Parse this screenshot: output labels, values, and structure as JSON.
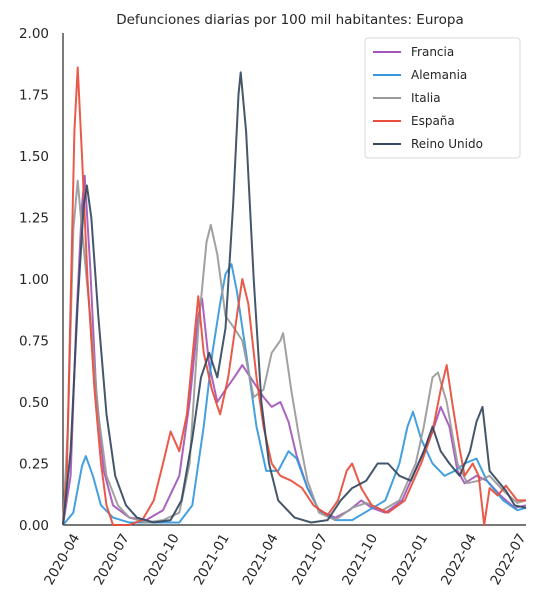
{
  "chart_data": {
    "type": "line",
    "title": "Defunciones diarias por 100 mil habitantes: Europa",
    "xlabel": "",
    "ylabel": "",
    "ylim": [
      0,
      2.0
    ],
    "xlim": [
      "2020-03-01",
      "2022-07-01"
    ],
    "yticks": [
      "0.00",
      "0.25",
      "0.50",
      "0.75",
      "1.00",
      "1.25",
      "1.50",
      "1.75",
      "2.00"
    ],
    "xticks": [
      {
        "date": "2020-04-01",
        "label": "2020-04"
      },
      {
        "date": "2020-07-01",
        "label": "2020-07"
      },
      {
        "date": "2020-10-01",
        "label": "2020-10"
      },
      {
        "date": "2021-01-01",
        "label": "2021-01"
      },
      {
        "date": "2021-04-01",
        "label": "2021-04"
      },
      {
        "date": "2021-07-01",
        "label": "2021-07"
      },
      {
        "date": "2021-10-01",
        "label": "2021-10"
      },
      {
        "date": "2022-01-01",
        "label": "2022-01"
      },
      {
        "date": "2022-04-01",
        "label": "2022-04"
      },
      {
        "date": "2022-07-01",
        "label": "2022-07"
      }
    ],
    "grid": false,
    "legend_position": "top-right",
    "series": [
      {
        "name": "Francia",
        "color": "#a356b8",
        "points": [
          [
            "2020-03-01",
            0.0
          ],
          [
            "2020-03-15",
            0.2
          ],
          [
            "2020-03-25",
            0.8
          ],
          [
            "2020-04-05",
            1.3
          ],
          [
            "2020-04-10",
            1.42
          ],
          [
            "2020-04-20",
            1.05
          ],
          [
            "2020-05-01",
            0.55
          ],
          [
            "2020-05-15",
            0.22
          ],
          [
            "2020-06-01",
            0.08
          ],
          [
            "2020-07-01",
            0.03
          ],
          [
            "2020-08-01",
            0.02
          ],
          [
            "2020-09-01",
            0.06
          ],
          [
            "2020-10-01",
            0.2
          ],
          [
            "2020-10-20",
            0.5
          ],
          [
            "2020-11-05",
            0.85
          ],
          [
            "2020-11-12",
            0.92
          ],
          [
            "2020-11-25",
            0.65
          ],
          [
            "2020-12-10",
            0.5
          ],
          [
            "2020-12-25",
            0.55
          ],
          [
            "2021-01-10",
            0.6
          ],
          [
            "2021-01-25",
            0.65
          ],
          [
            "2021-02-15",
            0.58
          ],
          [
            "2021-03-05",
            0.52
          ],
          [
            "2021-03-20",
            0.48
          ],
          [
            "2021-04-05",
            0.5
          ],
          [
            "2021-04-20",
            0.42
          ],
          [
            "2021-05-05",
            0.28
          ],
          [
            "2021-05-25",
            0.15
          ],
          [
            "2021-06-15",
            0.06
          ],
          [
            "2021-07-15",
            0.03
          ],
          [
            "2021-08-10",
            0.06
          ],
          [
            "2021-09-01",
            0.1
          ],
          [
            "2021-09-20",
            0.07
          ],
          [
            "2021-10-15",
            0.05
          ],
          [
            "2021-11-15",
            0.1
          ],
          [
            "2021-12-15",
            0.25
          ],
          [
            "2022-01-10",
            0.38
          ],
          [
            "2022-01-25",
            0.48
          ],
          [
            "2022-02-10",
            0.4
          ],
          [
            "2022-02-25",
            0.22
          ],
          [
            "2022-03-10",
            0.17
          ],
          [
            "2022-04-01",
            0.2
          ],
          [
            "2022-04-20",
            0.18
          ],
          [
            "2022-05-15",
            0.12
          ],
          [
            "2022-06-10",
            0.07
          ],
          [
            "2022-07-01",
            0.08
          ]
        ]
      },
      {
        "name": "Alemania",
        "color": "#3498db",
        "points": [
          [
            "2020-03-01",
            0.0
          ],
          [
            "2020-03-20",
            0.05
          ],
          [
            "2020-04-05",
            0.24
          ],
          [
            "2020-04-12",
            0.28
          ],
          [
            "2020-04-25",
            0.2
          ],
          [
            "2020-05-10",
            0.08
          ],
          [
            "2020-06-01",
            0.03
          ],
          [
            "2020-07-01",
            0.01
          ],
          [
            "2020-08-15",
            0.01
          ],
          [
            "2020-10-01",
            0.01
          ],
          [
            "2020-10-25",
            0.08
          ],
          [
            "2020-11-15",
            0.4
          ],
          [
            "2020-12-01",
            0.7
          ],
          [
            "2020-12-15",
            0.9
          ],
          [
            "2020-12-25",
            1.02
          ],
          [
            "2021-01-05",
            1.06
          ],
          [
            "2021-01-15",
            0.95
          ],
          [
            "2021-02-01",
            0.7
          ],
          [
            "2021-02-20",
            0.4
          ],
          [
            "2021-03-10",
            0.22
          ],
          [
            "2021-04-01",
            0.22
          ],
          [
            "2021-04-20",
            0.3
          ],
          [
            "2021-05-05",
            0.27
          ],
          [
            "2021-05-25",
            0.15
          ],
          [
            "2021-06-15",
            0.06
          ],
          [
            "2021-07-15",
            0.02
          ],
          [
            "2021-08-15",
            0.02
          ],
          [
            "2021-09-15",
            0.06
          ],
          [
            "2021-10-15",
            0.1
          ],
          [
            "2021-11-10",
            0.25
          ],
          [
            "2021-11-25",
            0.4
          ],
          [
            "2021-12-05",
            0.46
          ],
          [
            "2021-12-20",
            0.35
          ],
          [
            "2022-01-10",
            0.25
          ],
          [
            "2022-02-01",
            0.2
          ],
          [
            "2022-02-20",
            0.22
          ],
          [
            "2022-03-10",
            0.25
          ],
          [
            "2022-04-01",
            0.27
          ],
          [
            "2022-04-20",
            0.18
          ],
          [
            "2022-05-20",
            0.1
          ],
          [
            "2022-06-15",
            0.06
          ],
          [
            "2022-07-01",
            0.07
          ]
        ]
      },
      {
        "name": "Italia",
        "color": "#999999",
        "points": [
          [
            "2020-03-01",
            0.0
          ],
          [
            "2020-03-10",
            0.4
          ],
          [
            "2020-03-20",
            1.2
          ],
          [
            "2020-03-28",
            1.4
          ],
          [
            "2020-04-05",
            1.2
          ],
          [
            "2020-04-20",
            0.85
          ],
          [
            "2020-05-05",
            0.45
          ],
          [
            "2020-05-20",
            0.2
          ],
          [
            "2020-06-10",
            0.08
          ],
          [
            "2020-07-01",
            0.03
          ],
          [
            "2020-08-01",
            0.01
          ],
          [
            "2020-09-01",
            0.02
          ],
          [
            "2020-10-01",
            0.05
          ],
          [
            "2020-10-20",
            0.25
          ],
          [
            "2020-11-05",
            0.8
          ],
          [
            "2020-11-20",
            1.15
          ],
          [
            "2020-11-28",
            1.22
          ],
          [
            "2020-12-10",
            1.1
          ],
          [
            "2020-12-25",
            0.85
          ],
          [
            "2021-01-10",
            0.8
          ],
          [
            "2021-01-25",
            0.75
          ],
          [
            "2021-02-15",
            0.52
          ],
          [
            "2021-03-05",
            0.55
          ],
          [
            "2021-03-20",
            0.7
          ],
          [
            "2021-04-05",
            0.75
          ],
          [
            "2021-04-10",
            0.78
          ],
          [
            "2021-04-25",
            0.55
          ],
          [
            "2021-05-10",
            0.35
          ],
          [
            "2021-05-25",
            0.18
          ],
          [
            "2021-06-15",
            0.05
          ],
          [
            "2021-07-15",
            0.02
          ],
          [
            "2021-08-15",
            0.07
          ],
          [
            "2021-09-10",
            0.09
          ],
          [
            "2021-10-10",
            0.06
          ],
          [
            "2021-11-10",
            0.1
          ],
          [
            "2021-12-10",
            0.25
          ],
          [
            "2021-12-25",
            0.4
          ],
          [
            "2022-01-10",
            0.6
          ],
          [
            "2022-01-20",
            0.62
          ],
          [
            "2022-02-05",
            0.5
          ],
          [
            "2022-02-25",
            0.25
          ],
          [
            "2022-03-15",
            0.17
          ],
          [
            "2022-04-05",
            0.18
          ],
          [
            "2022-04-25",
            0.2
          ],
          [
            "2022-05-20",
            0.14
          ],
          [
            "2022-06-15",
            0.09
          ],
          [
            "2022-07-01",
            0.1
          ]
        ]
      },
      {
        "name": "España",
        "color": "#e74c3c",
        "points": [
          [
            "2020-03-01",
            0.0
          ],
          [
            "2020-03-08",
            0.2
          ],
          [
            "2020-03-15",
            0.9
          ],
          [
            "2020-03-22",
            1.6
          ],
          [
            "2020-03-28",
            1.86
          ],
          [
            "2020-04-05",
            1.5
          ],
          [
            "2020-04-15",
            1.0
          ],
          [
            "2020-04-28",
            0.55
          ],
          [
            "2020-05-10",
            0.25
          ],
          [
            "2020-05-20",
            0.08
          ],
          [
            "2020-06-01",
            0.0
          ],
          [
            "2020-07-01",
            0.0
          ],
          [
            "2020-07-25",
            0.02
          ],
          [
            "2020-08-15",
            0.1
          ],
          [
            "2020-09-01",
            0.25
          ],
          [
            "2020-09-15",
            0.38
          ],
          [
            "2020-10-01",
            0.3
          ],
          [
            "2020-10-15",
            0.45
          ],
          [
            "2020-10-28",
            0.75
          ],
          [
            "2020-11-05",
            0.93
          ],
          [
            "2020-11-15",
            0.7
          ],
          [
            "2020-11-30",
            0.55
          ],
          [
            "2020-12-15",
            0.45
          ],
          [
            "2020-12-30",
            0.6
          ],
          [
            "2021-01-15",
            0.85
          ],
          [
            "2021-01-25",
            1.0
          ],
          [
            "2021-02-05",
            0.9
          ],
          [
            "2021-02-20",
            0.6
          ],
          [
            "2021-03-05",
            0.4
          ],
          [
            "2021-03-20",
            0.25
          ],
          [
            "2021-04-05",
            0.2
          ],
          [
            "2021-04-25",
            0.18
          ],
          [
            "2021-05-15",
            0.15
          ],
          [
            "2021-06-05",
            0.08
          ],
          [
            "2021-07-01",
            0.04
          ],
          [
            "2021-07-20",
            0.1
          ],
          [
            "2021-08-05",
            0.22
          ],
          [
            "2021-08-15",
            0.25
          ],
          [
            "2021-09-01",
            0.15
          ],
          [
            "2021-09-20",
            0.08
          ],
          [
            "2021-10-20",
            0.05
          ],
          [
            "2021-11-20",
            0.1
          ],
          [
            "2021-12-20",
            0.25
          ],
          [
            "2022-01-10",
            0.38
          ],
          [
            "2022-01-25",
            0.55
          ],
          [
            "2022-02-05",
            0.65
          ],
          [
            "2022-02-15",
            0.5
          ],
          [
            "2022-02-28",
            0.32
          ],
          [
            "2022-03-10",
            0.2
          ],
          [
            "2022-03-25",
            0.25
          ],
          [
            "2022-04-05",
            0.2
          ],
          [
            "2022-04-15",
            0.0
          ],
          [
            "2022-04-25",
            0.15
          ],
          [
            "2022-05-10",
            0.12
          ],
          [
            "2022-05-25",
            0.16
          ],
          [
            "2022-06-15",
            0.1
          ],
          [
            "2022-07-01",
            0.1
          ]
        ]
      },
      {
        "name": "Reino Unido",
        "color": "#34495e",
        "points": [
          [
            "2020-03-01",
            0.0
          ],
          [
            "2020-03-15",
            0.3
          ],
          [
            "2020-03-28",
            0.9
          ],
          [
            "2020-04-08",
            1.3
          ],
          [
            "2020-04-14",
            1.38
          ],
          [
            "2020-04-22",
            1.25
          ],
          [
            "2020-05-05",
            0.85
          ],
          [
            "2020-05-20",
            0.45
          ],
          [
            "2020-06-05",
            0.2
          ],
          [
            "2020-06-25",
            0.08
          ],
          [
            "2020-07-15",
            0.03
          ],
          [
            "2020-08-15",
            0.01
          ],
          [
            "2020-09-15",
            0.02
          ],
          [
            "2020-10-05",
            0.1
          ],
          [
            "2020-10-25",
            0.35
          ],
          [
            "2020-11-10",
            0.6
          ],
          [
            "2020-11-25",
            0.7
          ],
          [
            "2020-12-10",
            0.6
          ],
          [
            "2020-12-25",
            0.8
          ],
          [
            "2021-01-08",
            1.3
          ],
          [
            "2021-01-18",
            1.75
          ],
          [
            "2021-01-22",
            1.84
          ],
          [
            "2021-02-01",
            1.6
          ],
          [
            "2021-02-15",
            1.0
          ],
          [
            "2021-03-01",
            0.5
          ],
          [
            "2021-03-15",
            0.25
          ],
          [
            "2021-04-01",
            0.1
          ],
          [
            "2021-05-01",
            0.03
          ],
          [
            "2021-06-01",
            0.01
          ],
          [
            "2021-07-01",
            0.02
          ],
          [
            "2021-07-25",
            0.1
          ],
          [
            "2021-08-15",
            0.15
          ],
          [
            "2021-09-10",
            0.18
          ],
          [
            "2021-10-01",
            0.25
          ],
          [
            "2021-10-20",
            0.25
          ],
          [
            "2021-11-10",
            0.2
          ],
          [
            "2021-12-01",
            0.18
          ],
          [
            "2021-12-25",
            0.3
          ],
          [
            "2022-01-10",
            0.4
          ],
          [
            "2022-01-25",
            0.3
          ],
          [
            "2022-02-10",
            0.25
          ],
          [
            "2022-03-01",
            0.2
          ],
          [
            "2022-03-20",
            0.3
          ],
          [
            "2022-04-01",
            0.42
          ],
          [
            "2022-04-12",
            0.48
          ],
          [
            "2022-04-25",
            0.22
          ],
          [
            "2022-05-10",
            0.18
          ],
          [
            "2022-05-25",
            0.14
          ],
          [
            "2022-06-10",
            0.08
          ],
          [
            "2022-07-01",
            0.07
          ]
        ]
      }
    ]
  }
}
